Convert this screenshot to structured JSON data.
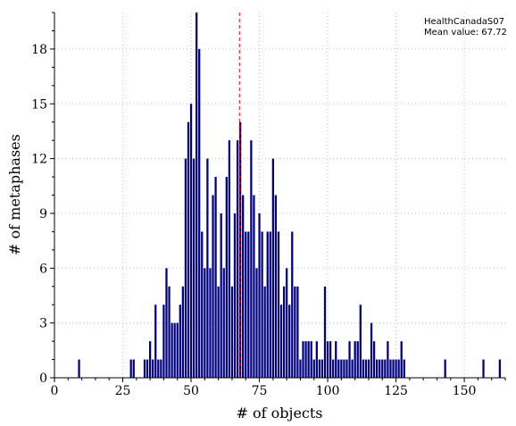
{
  "chart_data": {
    "type": "bar",
    "title": "",
    "xlabel": "# of objects",
    "ylabel": "# of metaphases",
    "xlim": [
      0,
      165
    ],
    "ylim": [
      0,
      20
    ],
    "xticks": [
      0,
      25,
      50,
      75,
      100,
      125,
      150
    ],
    "yticks": [
      0,
      3,
      6,
      9,
      12,
      15,
      18
    ],
    "grid": true,
    "legend": {
      "placement": "top-right",
      "lines": [
        "HealthCanadaS07",
        "Mean value: 67.72"
      ]
    },
    "mean_value": 67.72,
    "colors": {
      "bars": "#000080",
      "mean_line": "#ff0000",
      "grid": "#c0c0c0"
    },
    "series": [
      {
        "x": [
          9,
          28,
          29,
          33,
          34,
          35,
          36,
          37,
          38,
          39,
          40,
          41,
          42,
          43,
          44,
          45,
          46,
          47,
          48,
          49,
          50,
          51,
          52,
          53,
          54,
          55,
          56,
          57,
          58,
          59,
          60,
          61,
          62,
          63,
          64,
          65,
          66,
          67,
          68,
          69,
          70,
          71,
          72,
          73,
          74,
          75,
          76,
          77,
          78,
          79,
          80,
          81,
          82,
          83,
          84,
          85,
          86,
          87,
          88,
          89,
          90,
          91,
          92,
          93,
          94,
          95,
          96,
          97,
          98,
          99,
          100,
          101,
          102,
          103,
          104,
          105,
          106,
          107,
          108,
          109,
          110,
          111,
          112,
          113,
          114,
          115,
          116,
          117,
          118,
          119,
          120,
          121,
          122,
          123,
          124,
          125,
          126,
          127,
          128,
          143,
          157,
          163
        ],
        "values": [
          1,
          1,
          1,
          1,
          1,
          2,
          1,
          4,
          1,
          1,
          4,
          6,
          5,
          3,
          3,
          3,
          4,
          5,
          12,
          14,
          15,
          12,
          20,
          18,
          8,
          6,
          12,
          6,
          10,
          11,
          5,
          9,
          6,
          11,
          13,
          5,
          9,
          13,
          14,
          10,
          8,
          8,
          13,
          10,
          6,
          9,
          8,
          5,
          8,
          8,
          12,
          10,
          8,
          4,
          5,
          6,
          4,
          8,
          5,
          5,
          1,
          2,
          2,
          2,
          2,
          1,
          2,
          1,
          1,
          5,
          2,
          2,
          1,
          2,
          1,
          1,
          1,
          1,
          2,
          1,
          2,
          2,
          4,
          1,
          1,
          1,
          3,
          2,
          1,
          1,
          1,
          1,
          2,
          1,
          1,
          1,
          1,
          2,
          1,
          1,
          1,
          1
        ]
      }
    ]
  }
}
